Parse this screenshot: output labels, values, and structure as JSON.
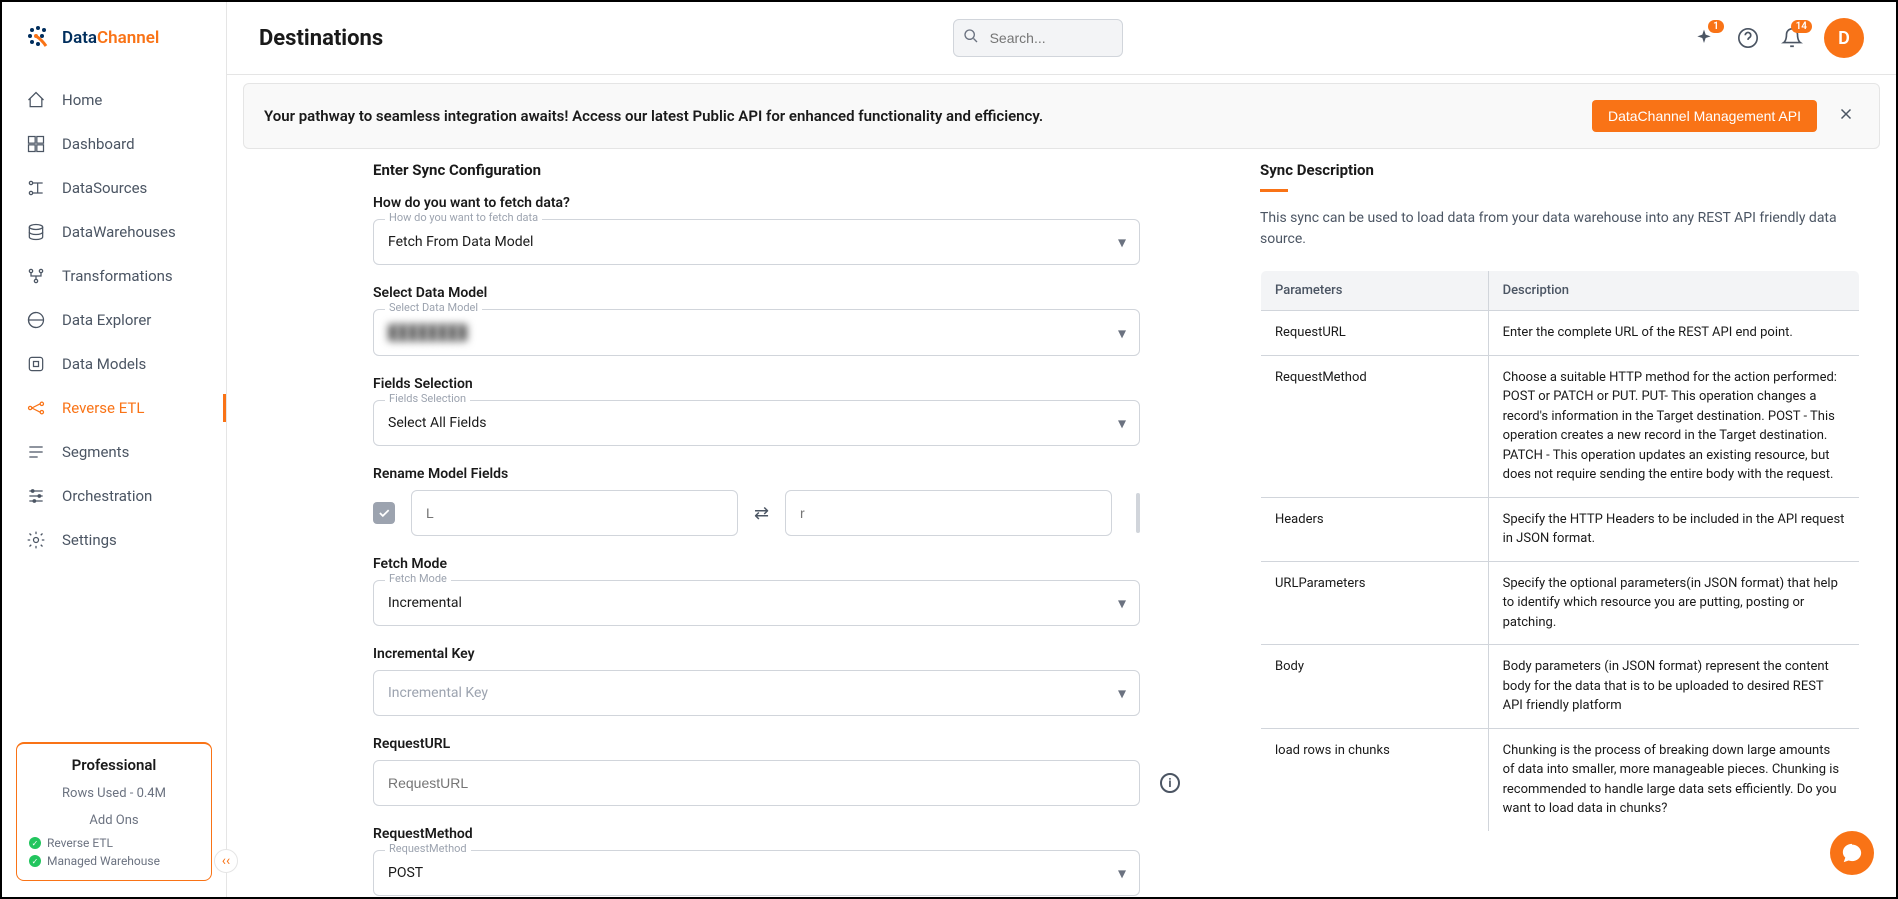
{
  "brand": {
    "name1": "Data",
    "name2": "Channel"
  },
  "nav": {
    "home": "Home",
    "dashboard": "Dashboard",
    "datasources": "DataSources",
    "datawarehouses": "DataWarehouses",
    "transformations": "Transformations",
    "dataexplorer": "Data Explorer",
    "datamodels": "Data Models",
    "reverseetl": "Reverse ETL",
    "segments": "Segments",
    "orchestration": "Orchestration",
    "settings": "Settings"
  },
  "plan": {
    "title": "Professional",
    "rows": "Rows Used - 0.4M",
    "addons_label": "Add Ons",
    "addon1": "Reverse ETL",
    "addon2": "Managed Warehouse"
  },
  "header": {
    "title": "Destinations",
    "search_placeholder": "Search...",
    "badge1": "1",
    "badge2": "14",
    "avatar": "D"
  },
  "banner": {
    "text": "Your pathway to seamless integration awaits! Access our latest Public API for enhanced functionality and efficiency.",
    "button": "DataChannel Management API"
  },
  "form": {
    "section_title": "Enter Sync Configuration",
    "fetch_label": "How do you want to fetch data?",
    "fetch_float": "How do you want to fetch data",
    "fetch_value": "Fetch From Data Model",
    "model_label": "Select Data Model",
    "model_float": "Select Data Model",
    "model_value": "████████",
    "fields_label": "Fields Selection",
    "fields_float": "Fields Selection",
    "fields_value": "Select All Fields",
    "rename_label": "Rename Model Fields",
    "rename_left": "L",
    "rename_right": "r",
    "fetchmode_label": "Fetch Mode",
    "fetchmode_float": "Fetch Mode",
    "fetchmode_value": "Incremental",
    "inckey_label": "Incremental Key",
    "inckey_placeholder": "Incremental Key",
    "requrl_label": "RequestURL",
    "requrl_placeholder": "RequestURL",
    "reqmethod_label": "RequestMethod",
    "reqmethod_float": "RequestMethod",
    "reqmethod_value": "POST"
  },
  "desc": {
    "title": "Sync Description",
    "text": "This sync can be used to load data from your data warehouse into any REST API friendly data source.",
    "th1": "Parameters",
    "th2": "Description",
    "rows": [
      {
        "param": "RequestURL",
        "desc": "Enter the complete URL of the REST API end point."
      },
      {
        "param": "RequestMethod",
        "desc": "Choose a suitable HTTP method for the action performed: POST or PATCH or PUT. PUT- This operation changes a record's information in the Target destination. POST - This operation creates a new record in the Target destination. PATCH - This operation updates an existing resource, but does not require sending the entire body with the request."
      },
      {
        "param": "Headers",
        "desc": "Specify the HTTP Headers to be included in the API request in JSON format."
      },
      {
        "param": "URLParameters",
        "desc": "Specify the optional parameters(in JSON format) that help to identify which resource you are putting, posting or patching."
      },
      {
        "param": "Body",
        "desc": "Body parameters (in JSON format) represent the content body for the data that is to be uploaded to desired REST API friendly platform"
      },
      {
        "param": "load rows in chunks",
        "desc": "Chunking is the process of breaking down large amounts of data into smaller, more manageable pieces. Chunking is recommended to handle large data sets efficiently. Do you want to load data in chunks?"
      }
    ]
  },
  "colors": {
    "accent": "#f97316",
    "text": "#1a1a1a",
    "muted": "#6b7280",
    "border": "#d1d5db"
  }
}
